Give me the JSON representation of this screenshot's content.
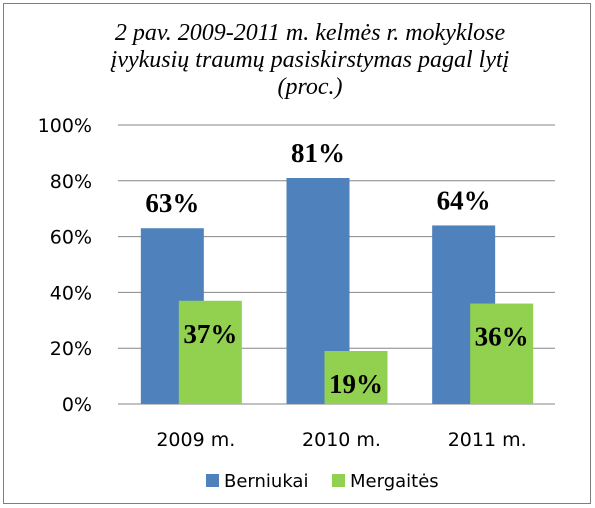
{
  "chart_data": {
    "type": "bar",
    "title": [
      "2 pav. 2009-2011 m. kelmės r. mokyklose",
      "įvykusių traumų pasiskirstymas pagal lytį",
      "(proc.)"
    ],
    "categories": [
      "2009 m.",
      "2010 m.",
      "2011 m."
    ],
    "series": [
      {
        "name": "Berniukai",
        "color": "#4f81bd",
        "values": [
          63,
          81,
          64
        ],
        "value_labels": [
          "63%",
          "81%",
          "64%"
        ]
      },
      {
        "name": "Mergaitės",
        "color": "#92d050",
        "values": [
          37,
          19,
          36
        ],
        "value_labels": [
          "37%",
          "19%",
          "36%"
        ]
      }
    ],
    "ylim": [
      0,
      100
    ],
    "yticks": [
      {
        "value": 0,
        "label": "0%"
      },
      {
        "value": 20,
        "label": "20%"
      },
      {
        "value": 40,
        "label": "40%"
      },
      {
        "value": 60,
        "label": "60%"
      },
      {
        "value": 80,
        "label": "80%"
      },
      {
        "value": 100,
        "label": "100%"
      }
    ],
    "grid": true,
    "legend": "bottom"
  }
}
